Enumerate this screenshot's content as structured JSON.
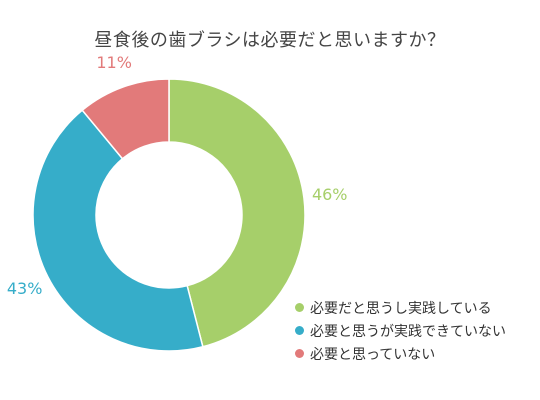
{
  "chart_data": {
    "type": "pie",
    "title": "昼食後の歯ブラシは必要だと思いますか？",
    "categories": [
      "必要だと思うし実践している",
      "必要と思うが実践できていない",
      "必要と思っていない"
    ],
    "values": [
      46,
      43,
      11
    ],
    "value_labels": [
      "46%",
      "43%",
      "11%"
    ],
    "colors": [
      "#a6cf6a",
      "#36adc9",
      "#e27a7a"
    ],
    "legend_position": "bottom-right",
    "donut": true
  }
}
